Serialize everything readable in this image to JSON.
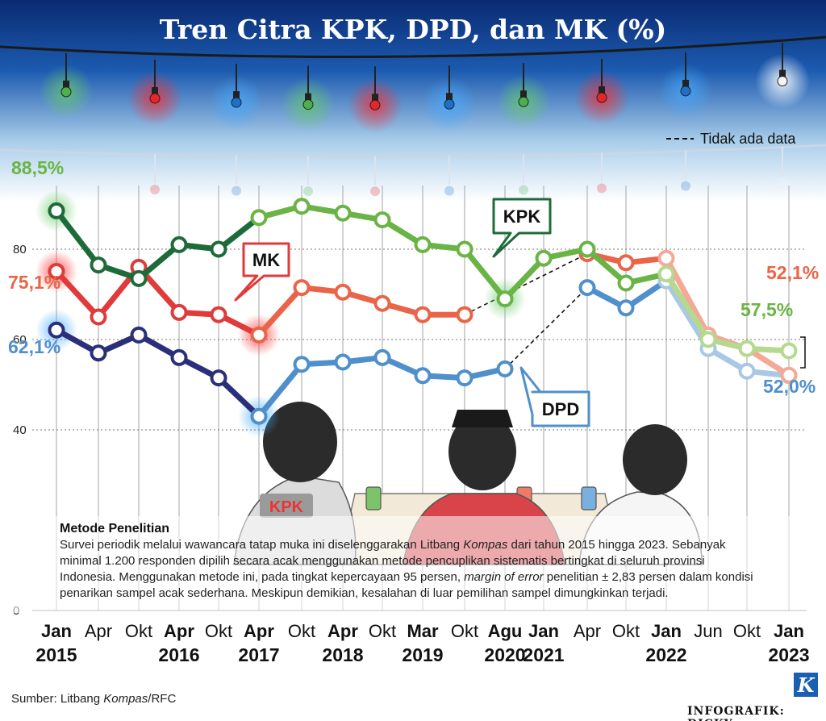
{
  "title": "Tren Citra KPK, DPD, dan MK (%)",
  "legend_no_data": "Tidak ada data",
  "source_prefix": "Sumber: Litbang ",
  "source_italic": "Kompas",
  "source_suffix": "/RFC",
  "credit": "INFOGRAFIK: DICKY",
  "logo_letter": "K",
  "jacket_logo": "KPK",
  "method": {
    "title": "Metode Penelitian",
    "p1": "Survei periodik melalui wawancara tatap muka ini diselenggarakan Litbang ",
    "p1_italic": "Kompas",
    "p2": " dari tahun 2015 hingga 2023. Sebanyak minimal 1.200 responden dipilih secara acak menggunakan metode pencuplikan sistematis bertingkat di seluruh provinsi Indonesia. Menggunakan metode ini, pada tingkat kepercayaan 95 persen, ",
    "p2_italic": "margin of error",
    "p3": " penelitian ± 2,83 persen dalam kondisi penarikan sampel acak sederhana. Meskipun demikian, kesalahan di luar pemilihan sampel dimungkinkan terjadi."
  },
  "colors": {
    "kpk_dark": "#1e6b3a",
    "kpk": "#6ab446",
    "kpk_light": "#b5d98e",
    "mk_dark": "#e03a3a",
    "mk": "#ea6548",
    "mk_light": "#f4a896",
    "dpd_dark": "#2b2f7a",
    "dpd": "#4f8fcc",
    "dpd_light": "#a9c8e6",
    "sky": "#0d2f7a"
  },
  "chart_data": {
    "type": "line",
    "title": "Tren Citra KPK, DPD, dan MK (%)",
    "xlabel": "",
    "ylabel": "",
    "ylim": [
      0,
      100
    ],
    "yticks": [
      0,
      40,
      60,
      80
    ],
    "grid": true,
    "x": [
      "Jan 2015",
      "Apr",
      "Okt",
      "Apr 2016",
      "Okt",
      "Apr 2017",
      "Okt",
      "Apr 2018",
      "Okt",
      "Mar 2019",
      "Okt",
      "Agu 2020",
      "Jan 2021",
      "Apr",
      "Okt",
      "Jan 2022",
      "Jun",
      "Okt",
      "Jan 2023"
    ],
    "x_labels": [
      {
        "l1": "Jan",
        "l2": "2015"
      },
      {
        "l1": "Apr",
        "l2": ""
      },
      {
        "l1": "Okt",
        "l2": ""
      },
      {
        "l1": "Apr",
        "l2": "2016"
      },
      {
        "l1": "Okt",
        "l2": ""
      },
      {
        "l1": "Apr",
        "l2": "2017"
      },
      {
        "l1": "Okt",
        "l2": ""
      },
      {
        "l1": "Apr",
        "l2": "2018"
      },
      {
        "l1": "Okt",
        "l2": ""
      },
      {
        "l1": "Mar",
        "l2": "2019"
      },
      {
        "l1": "Okt",
        "l2": ""
      },
      {
        "l1": "Agu",
        "l2": "2020"
      },
      {
        "l1": "Jan",
        "l2": "2021"
      },
      {
        "l1": "Apr",
        "l2": ""
      },
      {
        "l1": "Okt",
        "l2": ""
      },
      {
        "l1": "Jan",
        "l2": "2022"
      },
      {
        "l1": "Jun",
        "l2": ""
      },
      {
        "l1": "Okt",
        "l2": ""
      },
      {
        "l1": "Jan",
        "l2": "2023"
      }
    ],
    "series": [
      {
        "name": "KPK",
        "values": [
          88.5,
          76.5,
          73.5,
          81,
          80,
          87,
          89.5,
          88,
          86.5,
          81,
          80,
          69,
          78,
          80,
          72.5,
          74.5,
          60,
          58,
          57.5
        ],
        "label_first": "88,5%",
        "label_last": "57,5%"
      },
      {
        "name": "MK",
        "values": [
          75.1,
          65,
          76,
          66,
          65.5,
          61,
          71.5,
          70.5,
          68,
          65.5,
          65.5,
          null,
          null,
          79,
          77,
          78,
          61,
          58,
          52.1
        ],
        "label_first": "75,1%",
        "label_last": "52,1%"
      },
      {
        "name": "DPD",
        "values": [
          62.1,
          57,
          61,
          56,
          51.5,
          43,
          54.5,
          55,
          56,
          52,
          51.5,
          53.5,
          null,
          71.5,
          67,
          73,
          58,
          53,
          52
        ],
        "label_first": "62,1%",
        "label_last": "52,0%"
      }
    ],
    "annotations": [
      "KPK",
      "MK",
      "DPD"
    ]
  }
}
